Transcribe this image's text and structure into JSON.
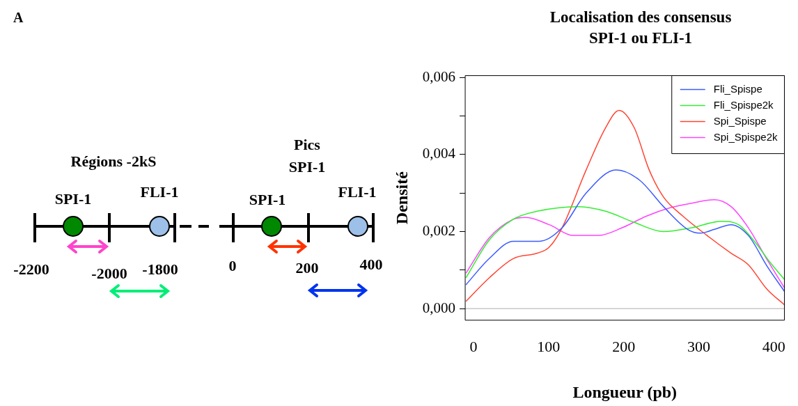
{
  "chart_data": [
    {
      "type": "other",
      "annotations": [
        "A",
        "Régions -2kS",
        "SPI-1",
        "FLI-1",
        "Pics SPI-1",
        "SPI-1",
        "FLI-1",
        "-2200",
        "-2000",
        "-1800",
        "0",
        "200",
        "400"
      ]
    },
    {
      "type": "line",
      "title": "Localisation des consensus SPI-1 ou FLI-1",
      "xlabel": "Longueur (pb)",
      "ylabel": "Densité",
      "xlim": [
        -11,
        414
      ],
      "xticks": [
        0,
        100,
        200,
        300,
        400
      ],
      "ylim": [
        -0.0003,
        0.00605
      ],
      "yticks": [
        {
          "value": 0,
          "label": "0,000"
        },
        {
          "value": 0.001,
          "label": null
        },
        {
          "value": 0.002,
          "label": "0,002"
        },
        {
          "value": 0.003,
          "label": null
        },
        {
          "value": 0.004,
          "label": "0,004"
        },
        {
          "value": 0.005,
          "label": null
        },
        {
          "value": 0.006,
          "label": "0,006"
        }
      ],
      "grid": false,
      "legend": "top right",
      "marker": "none",
      "line_style": "solid",
      "ref_lines": [
        {
          "axis": "y",
          "value": 0,
          "color": "#bebebe"
        }
      ],
      "series": [
        {
          "name": "Fli_Spispe",
          "color": "#3b5bff",
          "x": [
            -10,
            21,
            53,
            88,
            118,
            150,
            190,
            221,
            253,
            285,
            302,
            321,
            343,
            366,
            391,
            414
          ],
          "values": [
            0.00062,
            0.0013,
            0.00175,
            0.00175,
            0.0021,
            0.003,
            0.0036,
            0.00334,
            0.00265,
            0.00206,
            0.00196,
            0.00206,
            0.00218,
            0.0019,
            0.0011,
            0.00045
          ]
        },
        {
          "name": "Fli_Spispe2k",
          "color": "#33ee33",
          "x": [
            -10,
            21,
            53,
            85,
            140,
            176,
            214,
            253,
            291,
            330,
            353,
            376,
            395,
            414
          ],
          "values": [
            0.0008,
            0.00178,
            0.00232,
            0.00253,
            0.00265,
            0.00253,
            0.00224,
            0.002,
            0.0021,
            0.00227,
            0.00218,
            0.0017,
            0.0012,
            0.00076
          ]
        },
        {
          "name": "Spi_Spispe",
          "color": "#ff4433",
          "x": [
            -10,
            21,
            53,
            85,
            101,
            118,
            150,
            176,
            194,
            214,
            234,
            253,
            279,
            311,
            343,
            366,
            391,
            414
          ],
          "values": [
            0.00019,
            0.0008,
            0.0013,
            0.00144,
            0.0016,
            0.0021,
            0.0036,
            0.0047,
            0.00515,
            0.0047,
            0.0036,
            0.0029,
            0.0024,
            0.0019,
            0.00144,
            0.00114,
            0.0005,
            0.0001
          ]
        },
        {
          "name": "Spi_Spispe2k",
          "color": "#ff44ff",
          "x": [
            -10,
            21,
            53,
            69,
            101,
            133,
            166,
            198,
            230,
            262,
            291,
            321,
            343,
            366,
            391,
            414
          ],
          "values": [
            0.00092,
            0.00184,
            0.00232,
            0.00237,
            0.00218,
            0.0019,
            0.0019,
            0.0021,
            0.0024,
            0.00262,
            0.00274,
            0.00283,
            0.00265,
            0.0021,
            0.00127,
            0.00054
          ]
        }
      ]
    }
  ]
}
